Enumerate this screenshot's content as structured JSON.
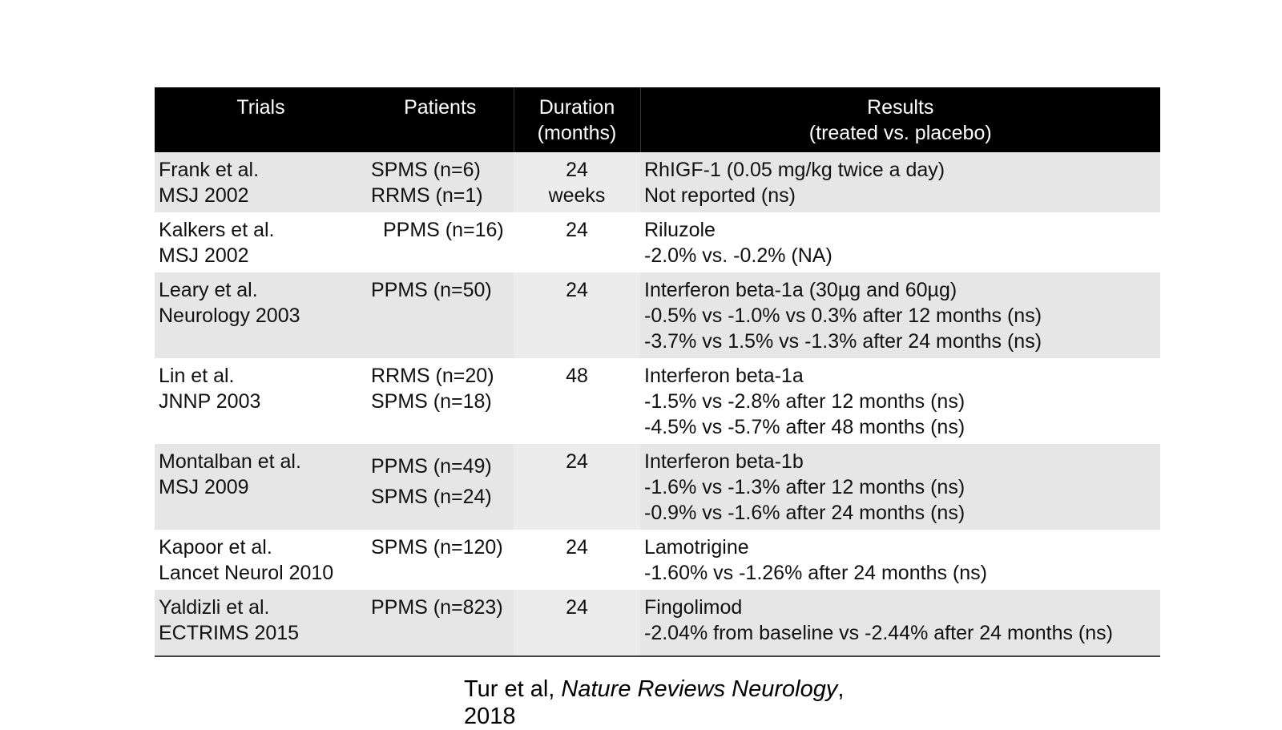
{
  "headers": {
    "trials": "Trials",
    "patients": "Patients",
    "duration_l1": "Duration",
    "duration_l2": "(months)",
    "results_l1": "Results",
    "results_l2": "(treated vs. placebo)"
  },
  "rows": [
    {
      "trial": [
        "Frank et al.",
        "MSJ 2002"
      ],
      "patients": [
        "SPMS (n=6)",
        "RRMS (n=1)"
      ],
      "duration": [
        "24",
        "weeks"
      ],
      "results": [
        "RhIGF-1 (0.05 mg/kg twice a day)",
        "Not reported (ns)"
      ]
    },
    {
      "trial": [
        "Kalkers et al.",
        "MSJ 2002"
      ],
      "patients": [
        "PPMS (n=16)"
      ],
      "duration": [
        "24"
      ],
      "results": [
        "Riluzole",
        "-2.0% vs. -0.2% (NA)"
      ]
    },
    {
      "trial": [
        "Leary et al.",
        "Neurology 2003"
      ],
      "patients": [
        "PPMS (n=50)"
      ],
      "duration": [
        "24"
      ],
      "results": [
        "Interferon beta-1a (30µg and 60µg)",
        "-0.5% vs -1.0% vs 0.3% after 12 months (ns)",
        "-3.7% vs 1.5% vs -1.3% after 24 months (ns)"
      ]
    },
    {
      "trial": [
        "Lin et al.",
        "JNNP 2003"
      ],
      "patients": [
        "RRMS (n=20)",
        "SPMS (n=18)"
      ],
      "duration": [
        "48"
      ],
      "results": [
        "Interferon beta-1a",
        "-1.5% vs -2.8% after 12 months (ns)",
        "-4.5% vs -5.7% after 48 months (ns)"
      ]
    },
    {
      "trial": [
        "Montalban et al.",
        "MSJ 2009"
      ],
      "patients": [
        "PPMS (n=49)",
        "SPMS (n=24)"
      ],
      "duration": [
        "24"
      ],
      "results": [
        "Interferon beta-1b",
        "-1.6% vs -1.3% after 12 months (ns)",
        "-0.9% vs -1.6% after 24 months (ns)"
      ]
    },
    {
      "trial": [
        "Kapoor et al.",
        "Lancet Neurol 2010"
      ],
      "patients": [
        "SPMS (n=120)"
      ],
      "duration": [
        "24"
      ],
      "results": [
        "Lamotrigine",
        "-1.60% vs -1.26% after 24 months (ns)"
      ]
    },
    {
      "trial": [
        "Yaldizli et al.",
        "ECTRIMS 2015"
      ],
      "patients": [
        "PPMS (n=823)"
      ],
      "duration": [
        "24"
      ],
      "results": [
        "Fingolimod",
        "-2.04% from baseline vs -2.44% after 24 months (ns)"
      ]
    }
  ],
  "citation": {
    "prefix": "Tur et al, ",
    "journal": "Nature Reviews Neurology",
    "suffix": ",",
    "year": "2018"
  }
}
